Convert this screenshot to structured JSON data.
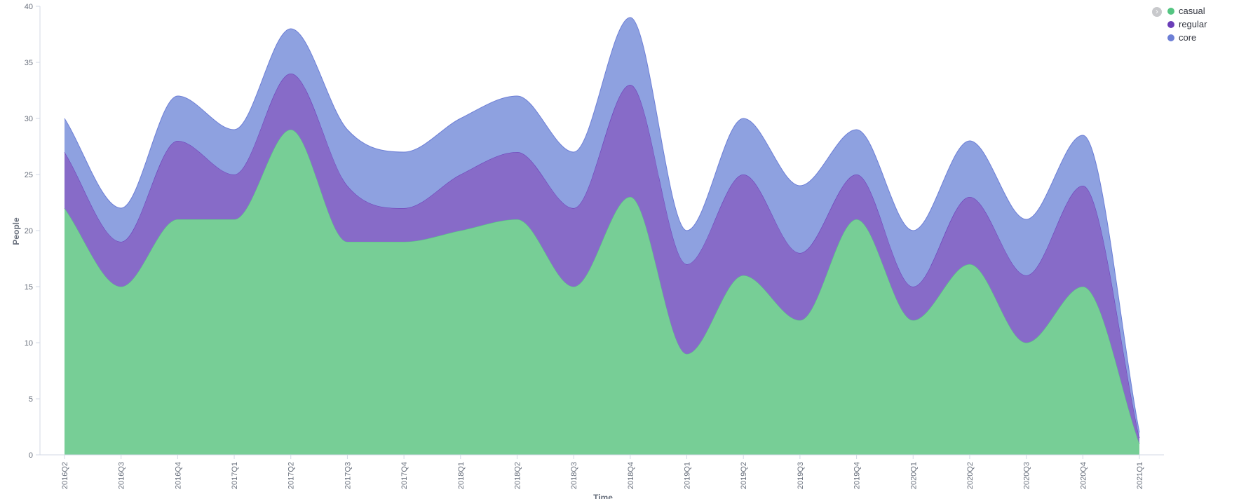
{
  "chart_data": {
    "type": "area",
    "stacked": true,
    "xlabel": "Time",
    "ylabel": "People",
    "ylim": [
      0,
      40
    ],
    "yticks": [
      0,
      5,
      10,
      15,
      20,
      25,
      30,
      35,
      40
    ],
    "categories": [
      "2016Q2",
      "2016Q3",
      "2016Q4",
      "2017Q1",
      "2017Q2",
      "2017Q3",
      "2017Q4",
      "2018Q1",
      "2018Q2",
      "2018Q3",
      "2018Q4",
      "2019Q1",
      "2019Q2",
      "2019Q3",
      "2019Q4",
      "2020Q1",
      "2020Q2",
      "2020Q3",
      "2020Q4",
      "2021Q1"
    ],
    "series": [
      {
        "name": "casual",
        "color": "#54c582",
        "fill": "#77ce96",
        "values": [
          22,
          15,
          21,
          21,
          29,
          19,
          19,
          20,
          21,
          15,
          23,
          9,
          16,
          12,
          21,
          12,
          17,
          10,
          15,
          1
        ]
      },
      {
        "name": "regular",
        "color": "#6a3db8",
        "fill": "#876bc8",
        "values": [
          5,
          4,
          7,
          4,
          5,
          5,
          3,
          5,
          6,
          7,
          10,
          8,
          9,
          6,
          4,
          3,
          6,
          6,
          9,
          0.5
        ]
      },
      {
        "name": "core",
        "color": "#6d7fd6",
        "fill": "#8ea1e0",
        "values": [
          3,
          3,
          4,
          4,
          4,
          5,
          5,
          5,
          5,
          5,
          6,
          3,
          5,
          6,
          4,
          5,
          5,
          5,
          4.5,
          0.5
        ]
      }
    ],
    "legend_position": "top-right",
    "grid": false
  },
  "legend": {
    "toggle_icon": "chevron-right-icon",
    "items": [
      {
        "label": "casual",
        "color": "#54c582"
      },
      {
        "label": "regular",
        "color": "#6a3db8"
      },
      {
        "label": "core",
        "color": "#6d7fd6"
      }
    ]
  }
}
